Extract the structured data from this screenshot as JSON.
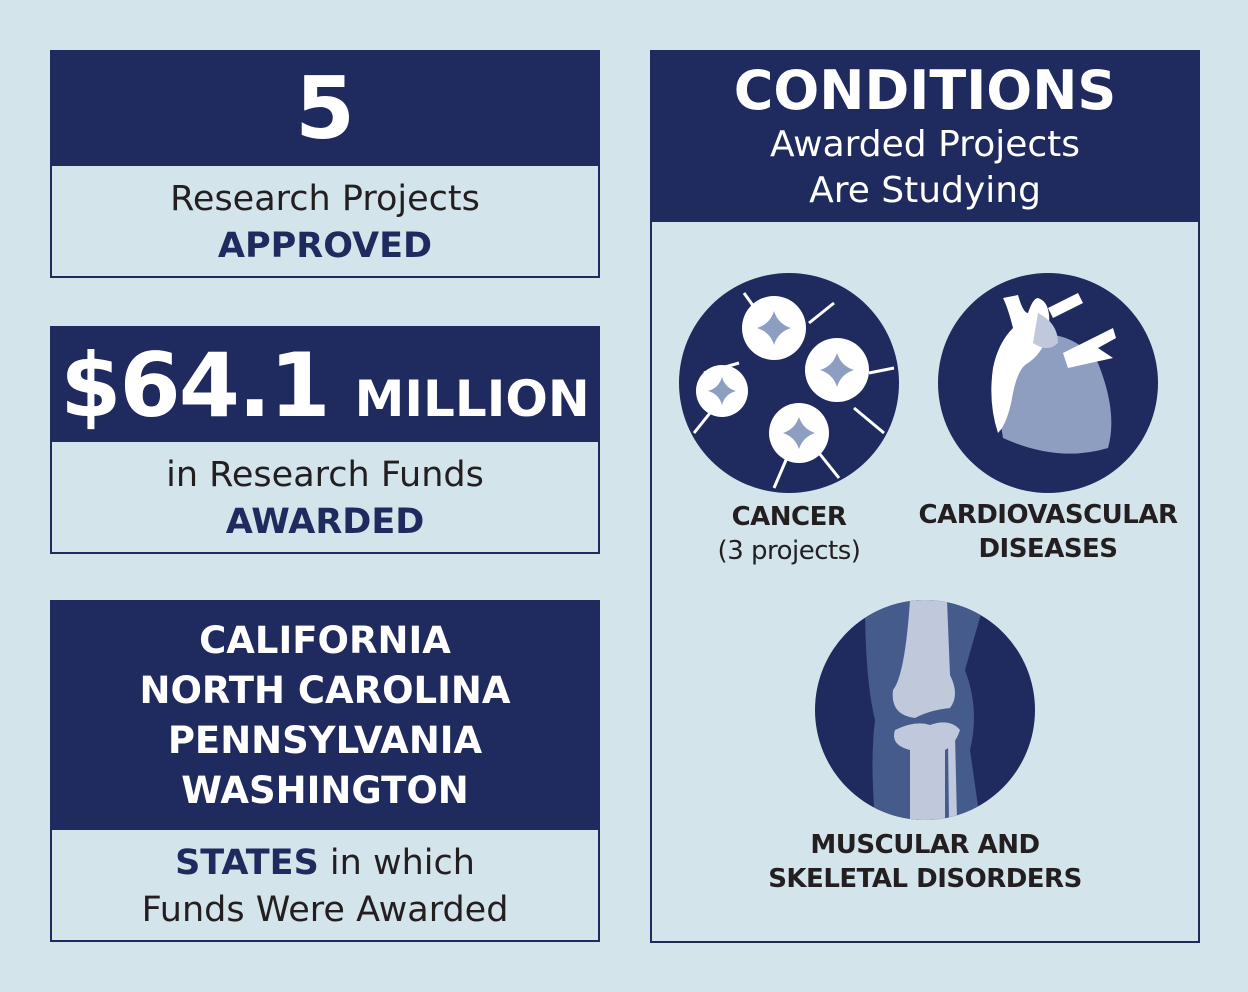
{
  "colors": {
    "background": "#d3e4eb",
    "navy": "#1f2a5e",
    "text": "#231f20"
  },
  "projects": {
    "number": "5",
    "line1": "Research Projects",
    "line2": "APPROVED"
  },
  "funds": {
    "amount": "$64.1",
    "unit": "MILLION",
    "line1": "in Research Funds",
    "line2": "AWARDED"
  },
  "states": {
    "list": [
      "CALIFORNIA",
      "NORTH CAROLINA",
      "PENNSYLVANIA",
      "WASHINGTON"
    ],
    "highlight": "STATES",
    "line1_rest": " in which",
    "line2": "Funds Were Awarded"
  },
  "conditions": {
    "title": "CONDITIONS",
    "subtitle1": "Awarded Projects",
    "subtitle2": "Are Studying",
    "items": [
      {
        "icon": "cancer-cells-icon",
        "label": "CANCER",
        "note": "(3 projects)"
      },
      {
        "icon": "heart-icon",
        "label1": "CARDIOVASCULAR",
        "label2": "DISEASES"
      },
      {
        "icon": "knee-joint-icon",
        "label1": "MUSCULAR AND",
        "label2": "SKELETAL DISORDERS"
      }
    ]
  }
}
